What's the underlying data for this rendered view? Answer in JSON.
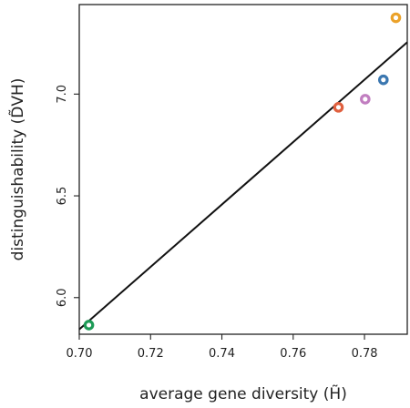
{
  "chart_data": {
    "type": "scatter",
    "xlabel": "average gene diversity (H̃)",
    "ylabel": "distinguishability (D̃VH)",
    "xlim": [
      0.7,
      0.792
    ],
    "ylim": [
      5.82,
      7.44
    ],
    "xticks": [
      0.7,
      0.72,
      0.74,
      0.76,
      0.78
    ],
    "xtick_labels": [
      "0.70",
      "0.72",
      "0.74",
      "0.76",
      "0.78"
    ],
    "yticks": [
      6.0,
      6.5,
      7.0
    ],
    "ytick_labels": [
      "6.0",
      "6.5",
      "7.0"
    ],
    "points": [
      {
        "x": 0.7027,
        "y": 5.865,
        "color": "#1e9b57"
      },
      {
        "x": 0.7727,
        "y": 6.935,
        "color": "#e0603f"
      },
      {
        "x": 0.7802,
        "y": 6.975,
        "color": "#c17ec0"
      },
      {
        "x": 0.7853,
        "y": 7.07,
        "color": "#3b77b0"
      },
      {
        "x": 0.7888,
        "y": 7.375,
        "color": "#eba22a"
      }
    ],
    "fit_line": {
      "x": [
        0.7,
        0.792
      ],
      "y": [
        5.844,
        7.255
      ],
      "color": "#111111"
    },
    "grid": false,
    "legend": "none"
  }
}
